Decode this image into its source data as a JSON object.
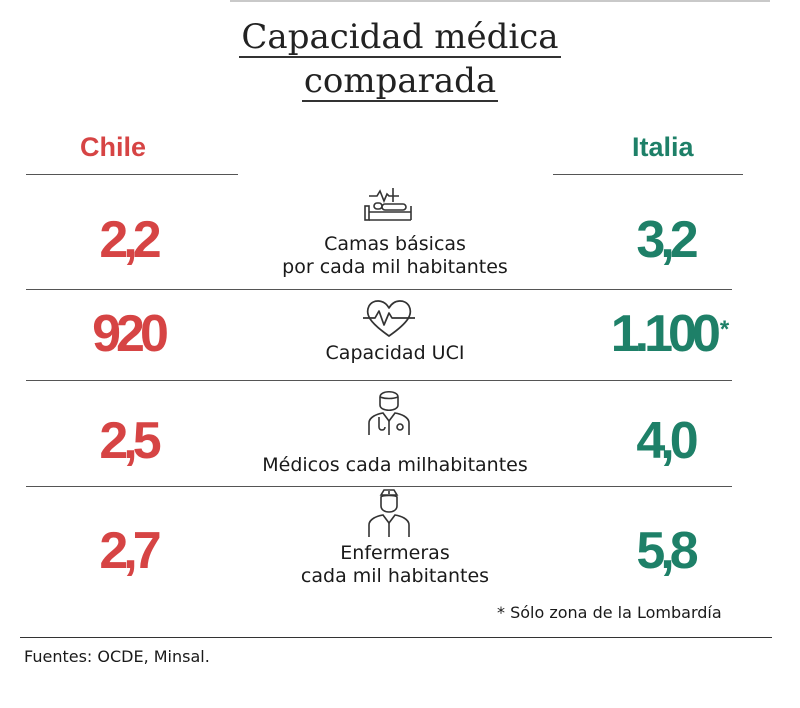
{
  "title": {
    "line1": "Capacidad médica",
    "line2": "comparada"
  },
  "headers": {
    "left": "Chile",
    "right": "Italia"
  },
  "colors": {
    "chile": "#d64444",
    "italia": "#1e8068"
  },
  "rows": [
    {
      "icon": "hospital-bed-icon",
      "label_lines": [
        "Camas básicas",
        "por cada mil habitantes"
      ],
      "chile": "2,2",
      "italia": "3,2"
    },
    {
      "icon": "heartbeat-icon",
      "label_lines": [
        "Capacidad UCI"
      ],
      "chile": "920",
      "italia": "1.100",
      "italia_mark": "*"
    },
    {
      "icon": "doctor-icon",
      "label_lines": [
        "Médicos cada milhabitantes"
      ],
      "chile": "2,5",
      "italia": "4,0"
    },
    {
      "icon": "nurse-icon",
      "label_lines": [
        "Enfermeras",
        "cada mil habitantes"
      ],
      "chile": "2,7",
      "italia": "5,8"
    }
  ],
  "footnote": "* Sólo zona de la Lombardía",
  "source": "Fuentes: OCDE, Minsal."
}
